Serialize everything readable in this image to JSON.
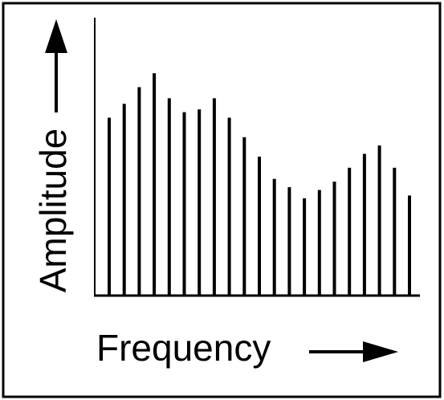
{
  "chart_data": {
    "type": "bar",
    "x_label": "Frequency",
    "y_label": "Amplitude",
    "values": [
      64,
      69,
      75,
      80,
      71,
      66,
      67,
      71,
      64,
      57,
      50,
      42,
      39,
      35,
      38,
      41,
      46,
      51,
      54,
      46,
      36
    ],
    "color": "#000000",
    "ylim": [
      0,
      100
    ]
  }
}
